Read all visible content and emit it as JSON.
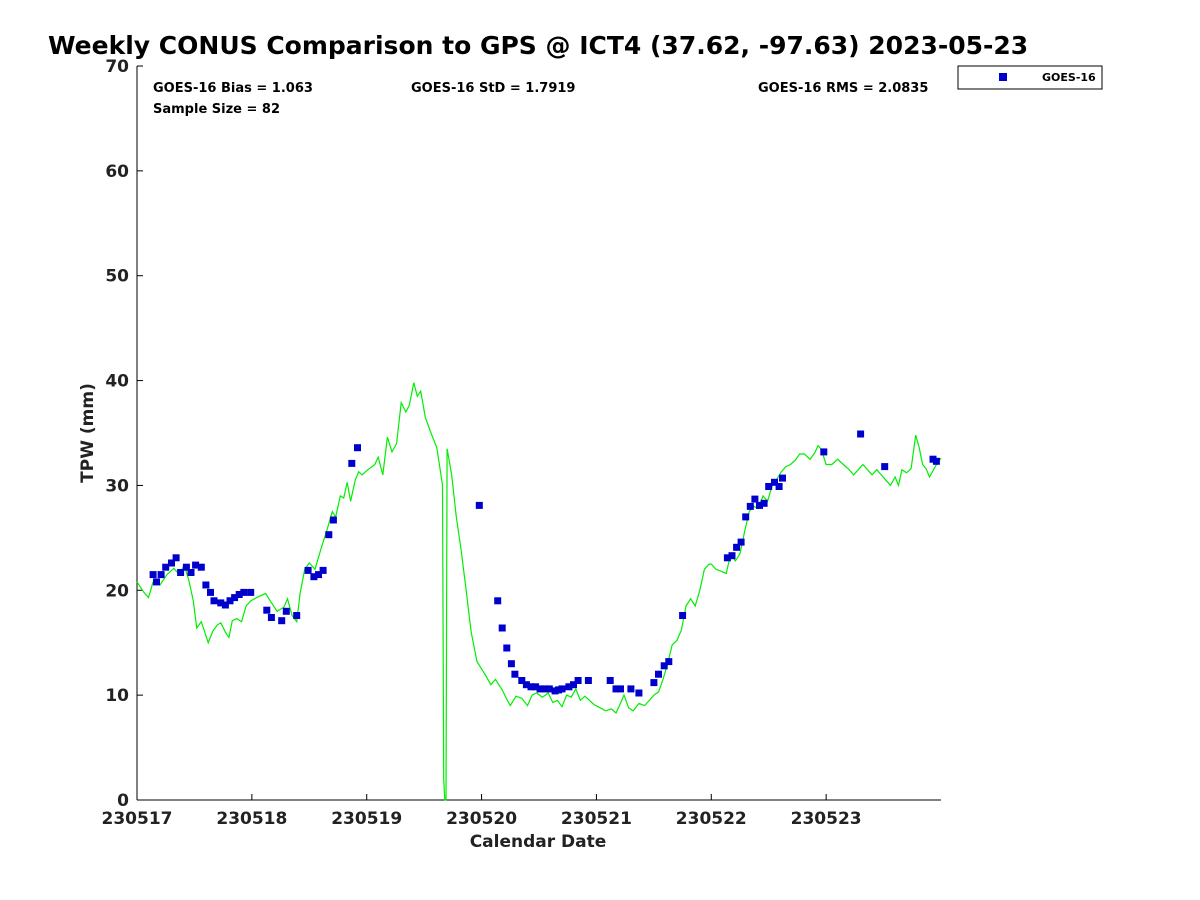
{
  "chart_data": {
    "type": "scatter",
    "title": "Weekly CONUS Comparison to GPS @ ICT4 (37.62, -97.63) 2023-05-23",
    "xlabel": "Calendar Date",
    "ylabel": "TPW (mm)",
    "xlim": [
      230517,
      230524
    ],
    "ylim": [
      0,
      70
    ],
    "x_tick_labels": [
      "230517",
      "230518",
      "230519",
      "230520",
      "230521",
      "230522",
      "230523"
    ],
    "y_ticks": [
      0,
      10,
      20,
      30,
      40,
      50,
      60,
      70
    ],
    "grid": false,
    "legend_position": "top-right",
    "stats": {
      "bias": "GOES-16 Bias = 1.063",
      "std": "GOES-16 StD = 1.7919",
      "rms": "GOES-16 RMS = 2.0835",
      "sample": "Sample Size = 82"
    },
    "series": [
      {
        "name": "GOES-16",
        "type": "scatter",
        "marker": "square",
        "color": "#0000cc",
        "points": [
          [
            230517.14,
            21.5
          ],
          [
            230517.17,
            20.8
          ],
          [
            230517.21,
            21.5
          ],
          [
            230517.25,
            22.2
          ],
          [
            230517.3,
            22.6
          ],
          [
            230517.34,
            23.1
          ],
          [
            230517.38,
            21.7
          ],
          [
            230517.43,
            22.2
          ],
          [
            230517.47,
            21.7
          ],
          [
            230517.51,
            22.4
          ],
          [
            230517.56,
            22.2
          ],
          [
            230517.6,
            20.5
          ],
          [
            230517.64,
            19.8
          ],
          [
            230517.67,
            19.0
          ],
          [
            230517.73,
            18.8
          ],
          [
            230517.77,
            18.6
          ],
          [
            230517.81,
            19.0
          ],
          [
            230517.85,
            19.3
          ],
          [
            230517.89,
            19.6
          ],
          [
            230517.93,
            19.8
          ],
          [
            230517.99,
            19.8
          ],
          [
            230518.13,
            18.1
          ],
          [
            230518.17,
            17.4
          ],
          [
            230518.26,
            17.1
          ],
          [
            230518.3,
            18.0
          ],
          [
            230518.39,
            17.6
          ],
          [
            230518.49,
            21.9
          ],
          [
            230518.54,
            21.3
          ],
          [
            230518.58,
            21.5
          ],
          [
            230518.62,
            21.9
          ],
          [
            230518.67,
            25.3
          ],
          [
            230518.71,
            26.7
          ],
          [
            230518.87,
            32.1
          ],
          [
            230518.92,
            33.6
          ],
          [
            230519.98,
            28.1
          ],
          [
            230520.14,
            19.0
          ],
          [
            230520.18,
            16.4
          ],
          [
            230520.22,
            14.5
          ],
          [
            230520.26,
            13.0
          ],
          [
            230520.29,
            12.0
          ],
          [
            230520.35,
            11.4
          ],
          [
            230520.39,
            11.0
          ],
          [
            230520.43,
            10.8
          ],
          [
            230520.47,
            10.8
          ],
          [
            230520.51,
            10.6
          ],
          [
            230520.55,
            10.6
          ],
          [
            230520.59,
            10.6
          ],
          [
            230520.64,
            10.4
          ],
          [
            230520.67,
            10.5
          ],
          [
            230520.7,
            10.6
          ],
          [
            230520.76,
            10.8
          ],
          [
            230520.8,
            11.0
          ],
          [
            230520.84,
            11.4
          ],
          [
            230520.93,
            11.4
          ],
          [
            230521.12,
            11.4
          ],
          [
            230521.17,
            10.6
          ],
          [
            230521.21,
            10.6
          ],
          [
            230521.3,
            10.6
          ],
          [
            230521.37,
            10.2
          ],
          [
            230521.5,
            11.2
          ],
          [
            230521.54,
            12.0
          ],
          [
            230521.59,
            12.8
          ],
          [
            230521.63,
            13.2
          ],
          [
            230521.75,
            17.6
          ],
          [
            230522.14,
            23.1
          ],
          [
            230522.18,
            23.3
          ],
          [
            230522.22,
            24.1
          ],
          [
            230522.26,
            24.6
          ],
          [
            230522.3,
            27.0
          ],
          [
            230522.34,
            28.0
          ],
          [
            230522.38,
            28.7
          ],
          [
            230522.42,
            28.1
          ],
          [
            230522.46,
            28.3
          ],
          [
            230522.5,
            29.9
          ],
          [
            230522.55,
            30.3
          ],
          [
            230522.59,
            29.9
          ],
          [
            230522.62,
            30.7
          ],
          [
            230522.98,
            33.2
          ],
          [
            230523.3,
            34.9
          ],
          [
            230523.51,
            31.8
          ],
          [
            230523.93,
            32.5
          ],
          [
            230523.96,
            32.3
          ]
        ]
      },
      {
        "name": "",
        "type": "line",
        "color": "#00ee00",
        "points": [
          [
            230517.0,
            20.8
          ],
          [
            230517.06,
            19.8
          ],
          [
            230517.1,
            19.3
          ],
          [
            230517.14,
            20.8
          ],
          [
            230517.2,
            20.5
          ],
          [
            230517.26,
            21.5
          ],
          [
            230517.32,
            22.1
          ],
          [
            230517.37,
            21.5
          ],
          [
            230517.41,
            22.4
          ],
          [
            230517.45,
            21.0
          ],
          [
            230517.49,
            19.0
          ],
          [
            230517.52,
            16.4
          ],
          [
            230517.56,
            17.0
          ],
          [
            230517.59,
            16.0
          ],
          [
            230517.62,
            15.0
          ],
          [
            230517.66,
            16.1
          ],
          [
            230517.7,
            16.7
          ],
          [
            230517.73,
            16.9
          ],
          [
            230517.77,
            16.0
          ],
          [
            230517.8,
            15.5
          ],
          [
            230517.83,
            17.1
          ],
          [
            230517.87,
            17.3
          ],
          [
            230517.91,
            17.0
          ],
          [
            230517.95,
            18.5
          ],
          [
            230517.99,
            19.0
          ],
          [
            230518.06,
            19.4
          ],
          [
            230518.12,
            19.7
          ],
          [
            230518.16,
            19.0
          ],
          [
            230518.22,
            18.0
          ],
          [
            230518.28,
            18.4
          ],
          [
            230518.31,
            19.2
          ],
          [
            230518.35,
            17.6
          ],
          [
            230518.39,
            17.0
          ],
          [
            230518.42,
            19.7
          ],
          [
            230518.46,
            22.0
          ],
          [
            230518.5,
            22.6
          ],
          [
            230518.55,
            22.0
          ],
          [
            230518.6,
            23.9
          ],
          [
            230518.66,
            26.0
          ],
          [
            230518.7,
            27.5
          ],
          [
            230518.73,
            27.0
          ],
          [
            230518.77,
            29.0
          ],
          [
            230518.8,
            28.8
          ],
          [
            230518.83,
            30.3
          ],
          [
            230518.86,
            28.5
          ],
          [
            230518.9,
            30.5
          ],
          [
            230518.93,
            31.3
          ],
          [
            230518.96,
            31.0
          ],
          [
            230519.0,
            31.4
          ],
          [
            230519.07,
            32.0
          ],
          [
            230519.1,
            32.7
          ],
          [
            230519.14,
            31.0
          ],
          [
            230519.18,
            34.6
          ],
          [
            230519.22,
            33.2
          ],
          [
            230519.26,
            34.0
          ],
          [
            230519.3,
            37.9
          ],
          [
            230519.34,
            37.0
          ],
          [
            230519.37,
            37.6
          ],
          [
            230519.41,
            39.8
          ],
          [
            230519.44,
            38.5
          ],
          [
            230519.47,
            39.0
          ],
          [
            230519.51,
            36.5
          ],
          [
            230519.56,
            35.0
          ],
          [
            230519.61,
            33.6
          ],
          [
            230519.64,
            31.5
          ],
          [
            230519.66,
            30.0
          ],
          [
            230519.67,
            2.0
          ],
          [
            230519.68,
            0.0
          ],
          [
            230519.69,
            0.0
          ],
          [
            230519.7,
            33.5
          ],
          [
            230519.74,
            31.0
          ],
          [
            230519.78,
            27.0
          ],
          [
            230519.82,
            24.0
          ],
          [
            230519.86,
            20.5
          ],
          [
            230519.91,
            16.0
          ],
          [
            230519.96,
            13.2
          ],
          [
            230520.0,
            12.5
          ],
          [
            230520.04,
            11.8
          ],
          [
            230520.08,
            11.0
          ],
          [
            230520.12,
            11.5
          ],
          [
            230520.18,
            10.5
          ],
          [
            230520.22,
            9.6
          ],
          [
            230520.25,
            9.0
          ],
          [
            230520.3,
            9.9
          ],
          [
            230520.35,
            9.7
          ],
          [
            230520.4,
            9.0
          ],
          [
            230520.44,
            10.0
          ],
          [
            230520.48,
            10.2
          ],
          [
            230520.53,
            9.8
          ],
          [
            230520.58,
            10.2
          ],
          [
            230520.62,
            9.3
          ],
          [
            230520.66,
            9.5
          ],
          [
            230520.7,
            8.9
          ],
          [
            230520.74,
            10.0
          ],
          [
            230520.78,
            9.8
          ],
          [
            230520.82,
            10.6
          ],
          [
            230520.86,
            9.5
          ],
          [
            230520.9,
            9.9
          ],
          [
            230520.94,
            9.5
          ],
          [
            230520.98,
            9.1
          ],
          [
            230521.03,
            8.8
          ],
          [
            230521.08,
            8.5
          ],
          [
            230521.13,
            8.7
          ],
          [
            230521.17,
            8.3
          ],
          [
            230521.2,
            9.0
          ],
          [
            230521.24,
            10.0
          ],
          [
            230521.28,
            8.8
          ],
          [
            230521.32,
            8.5
          ],
          [
            230521.37,
            9.2
          ],
          [
            230521.42,
            9.0
          ],
          [
            230521.46,
            9.5
          ],
          [
            230521.5,
            10.0
          ],
          [
            230521.54,
            10.3
          ],
          [
            230521.58,
            11.5
          ],
          [
            230521.62,
            13.0
          ],
          [
            230521.66,
            14.8
          ],
          [
            230521.7,
            15.2
          ],
          [
            230521.74,
            16.2
          ],
          [
            230521.78,
            18.5
          ],
          [
            230521.82,
            19.2
          ],
          [
            230521.86,
            18.5
          ],
          [
            230521.9,
            20.0
          ],
          [
            230521.94,
            22.0
          ],
          [
            230521.98,
            22.5
          ],
          [
            230522.0,
            22.5
          ],
          [
            230522.04,
            22.0
          ],
          [
            230522.09,
            21.8
          ],
          [
            230522.13,
            21.6
          ],
          [
            230522.17,
            23.5
          ],
          [
            230522.21,
            22.8
          ],
          [
            230522.25,
            23.5
          ],
          [
            230522.29,
            25.6
          ],
          [
            230522.33,
            27.5
          ],
          [
            230522.37,
            28.0
          ],
          [
            230522.41,
            27.8
          ],
          [
            230522.45,
            29.0
          ],
          [
            230522.49,
            28.5
          ],
          [
            230522.53,
            30.0
          ],
          [
            230522.57,
            30.6
          ],
          [
            230522.61,
            31.3
          ],
          [
            230522.65,
            31.8
          ],
          [
            230522.69,
            32.0
          ],
          [
            230522.73,
            32.4
          ],
          [
            230522.77,
            33.0
          ],
          [
            230522.81,
            33.0
          ],
          [
            230522.86,
            32.5
          ],
          [
            230522.9,
            33.1
          ],
          [
            230522.93,
            33.8
          ],
          [
            230522.96,
            33.4
          ],
          [
            230523.0,
            32.0
          ],
          [
            230523.05,
            32.0
          ],
          [
            230523.1,
            32.5
          ],
          [
            230523.15,
            32.0
          ],
          [
            230523.2,
            31.5
          ],
          [
            230523.24,
            31.0
          ],
          [
            230523.28,
            31.5
          ],
          [
            230523.32,
            32.0
          ],
          [
            230523.36,
            31.5
          ],
          [
            230523.4,
            31.0
          ],
          [
            230523.44,
            31.5
          ],
          [
            230523.48,
            31.0
          ],
          [
            230523.52,
            30.5
          ],
          [
            230523.56,
            30.0
          ],
          [
            230523.6,
            30.8
          ],
          [
            230523.63,
            30.0
          ],
          [
            230523.66,
            31.5
          ],
          [
            230523.7,
            31.2
          ],
          [
            230523.74,
            31.6
          ],
          [
            230523.78,
            34.8
          ],
          [
            230523.81,
            33.6
          ],
          [
            230523.84,
            32.0
          ],
          [
            230523.87,
            31.6
          ],
          [
            230523.9,
            30.8
          ],
          [
            230523.93,
            31.4
          ],
          [
            230523.97,
            32.2
          ],
          [
            230524.0,
            32.6
          ]
        ]
      }
    ]
  }
}
